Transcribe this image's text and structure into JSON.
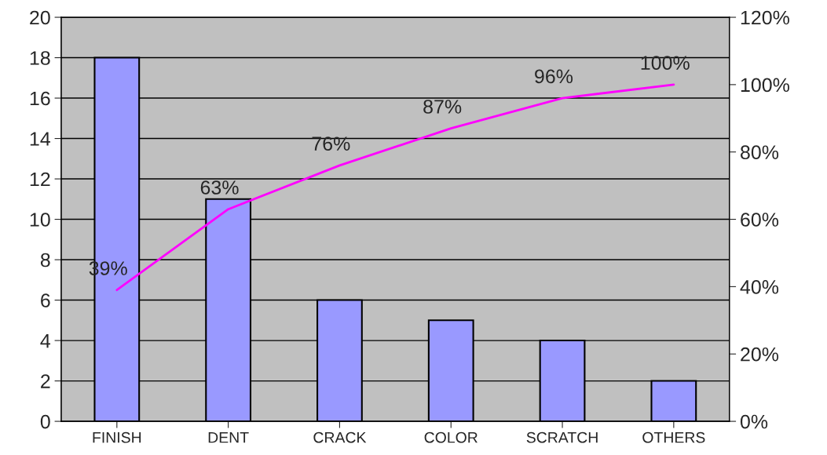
{
  "chart_data": {
    "type": "bar",
    "categories": [
      "FINISH",
      "DENT",
      "CRACK",
      "COLOR",
      "SCRATCH",
      "OTHERS"
    ],
    "series": [
      {
        "color": "#9999ff",
        "values": [
          18,
          11,
          6,
          5,
          4,
          2
        ]
      },
      {
        "type": "line",
        "axis": "y2",
        "color": "#ff00ff",
        "values": [
          39,
          63,
          76,
          87,
          96,
          100
        ],
        "value_labels": [
          "39%",
          "63%",
          "76%",
          "87%",
          "96%",
          "100%"
        ]
      }
    ],
    "ylim": [
      0,
      20
    ],
    "yticks": [
      0,
      2,
      4,
      6,
      8,
      10,
      12,
      14,
      16,
      18,
      20
    ],
    "y2lim": [
      0,
      120
    ],
    "y2ticks": [
      {
        "value": 0,
        "label": "0%"
      },
      {
        "value": 20,
        "label": "20%"
      },
      {
        "value": 40,
        "label": "40%"
      },
      {
        "value": 60,
        "label": "60%"
      },
      {
        "value": 80,
        "label": "80%"
      },
      {
        "value": 100,
        "label": "100%"
      },
      {
        "value": 120,
        "label": "120%"
      }
    ],
    "grid": "y",
    "marker": "none",
    "line_style": "solid",
    "legend": false
  }
}
